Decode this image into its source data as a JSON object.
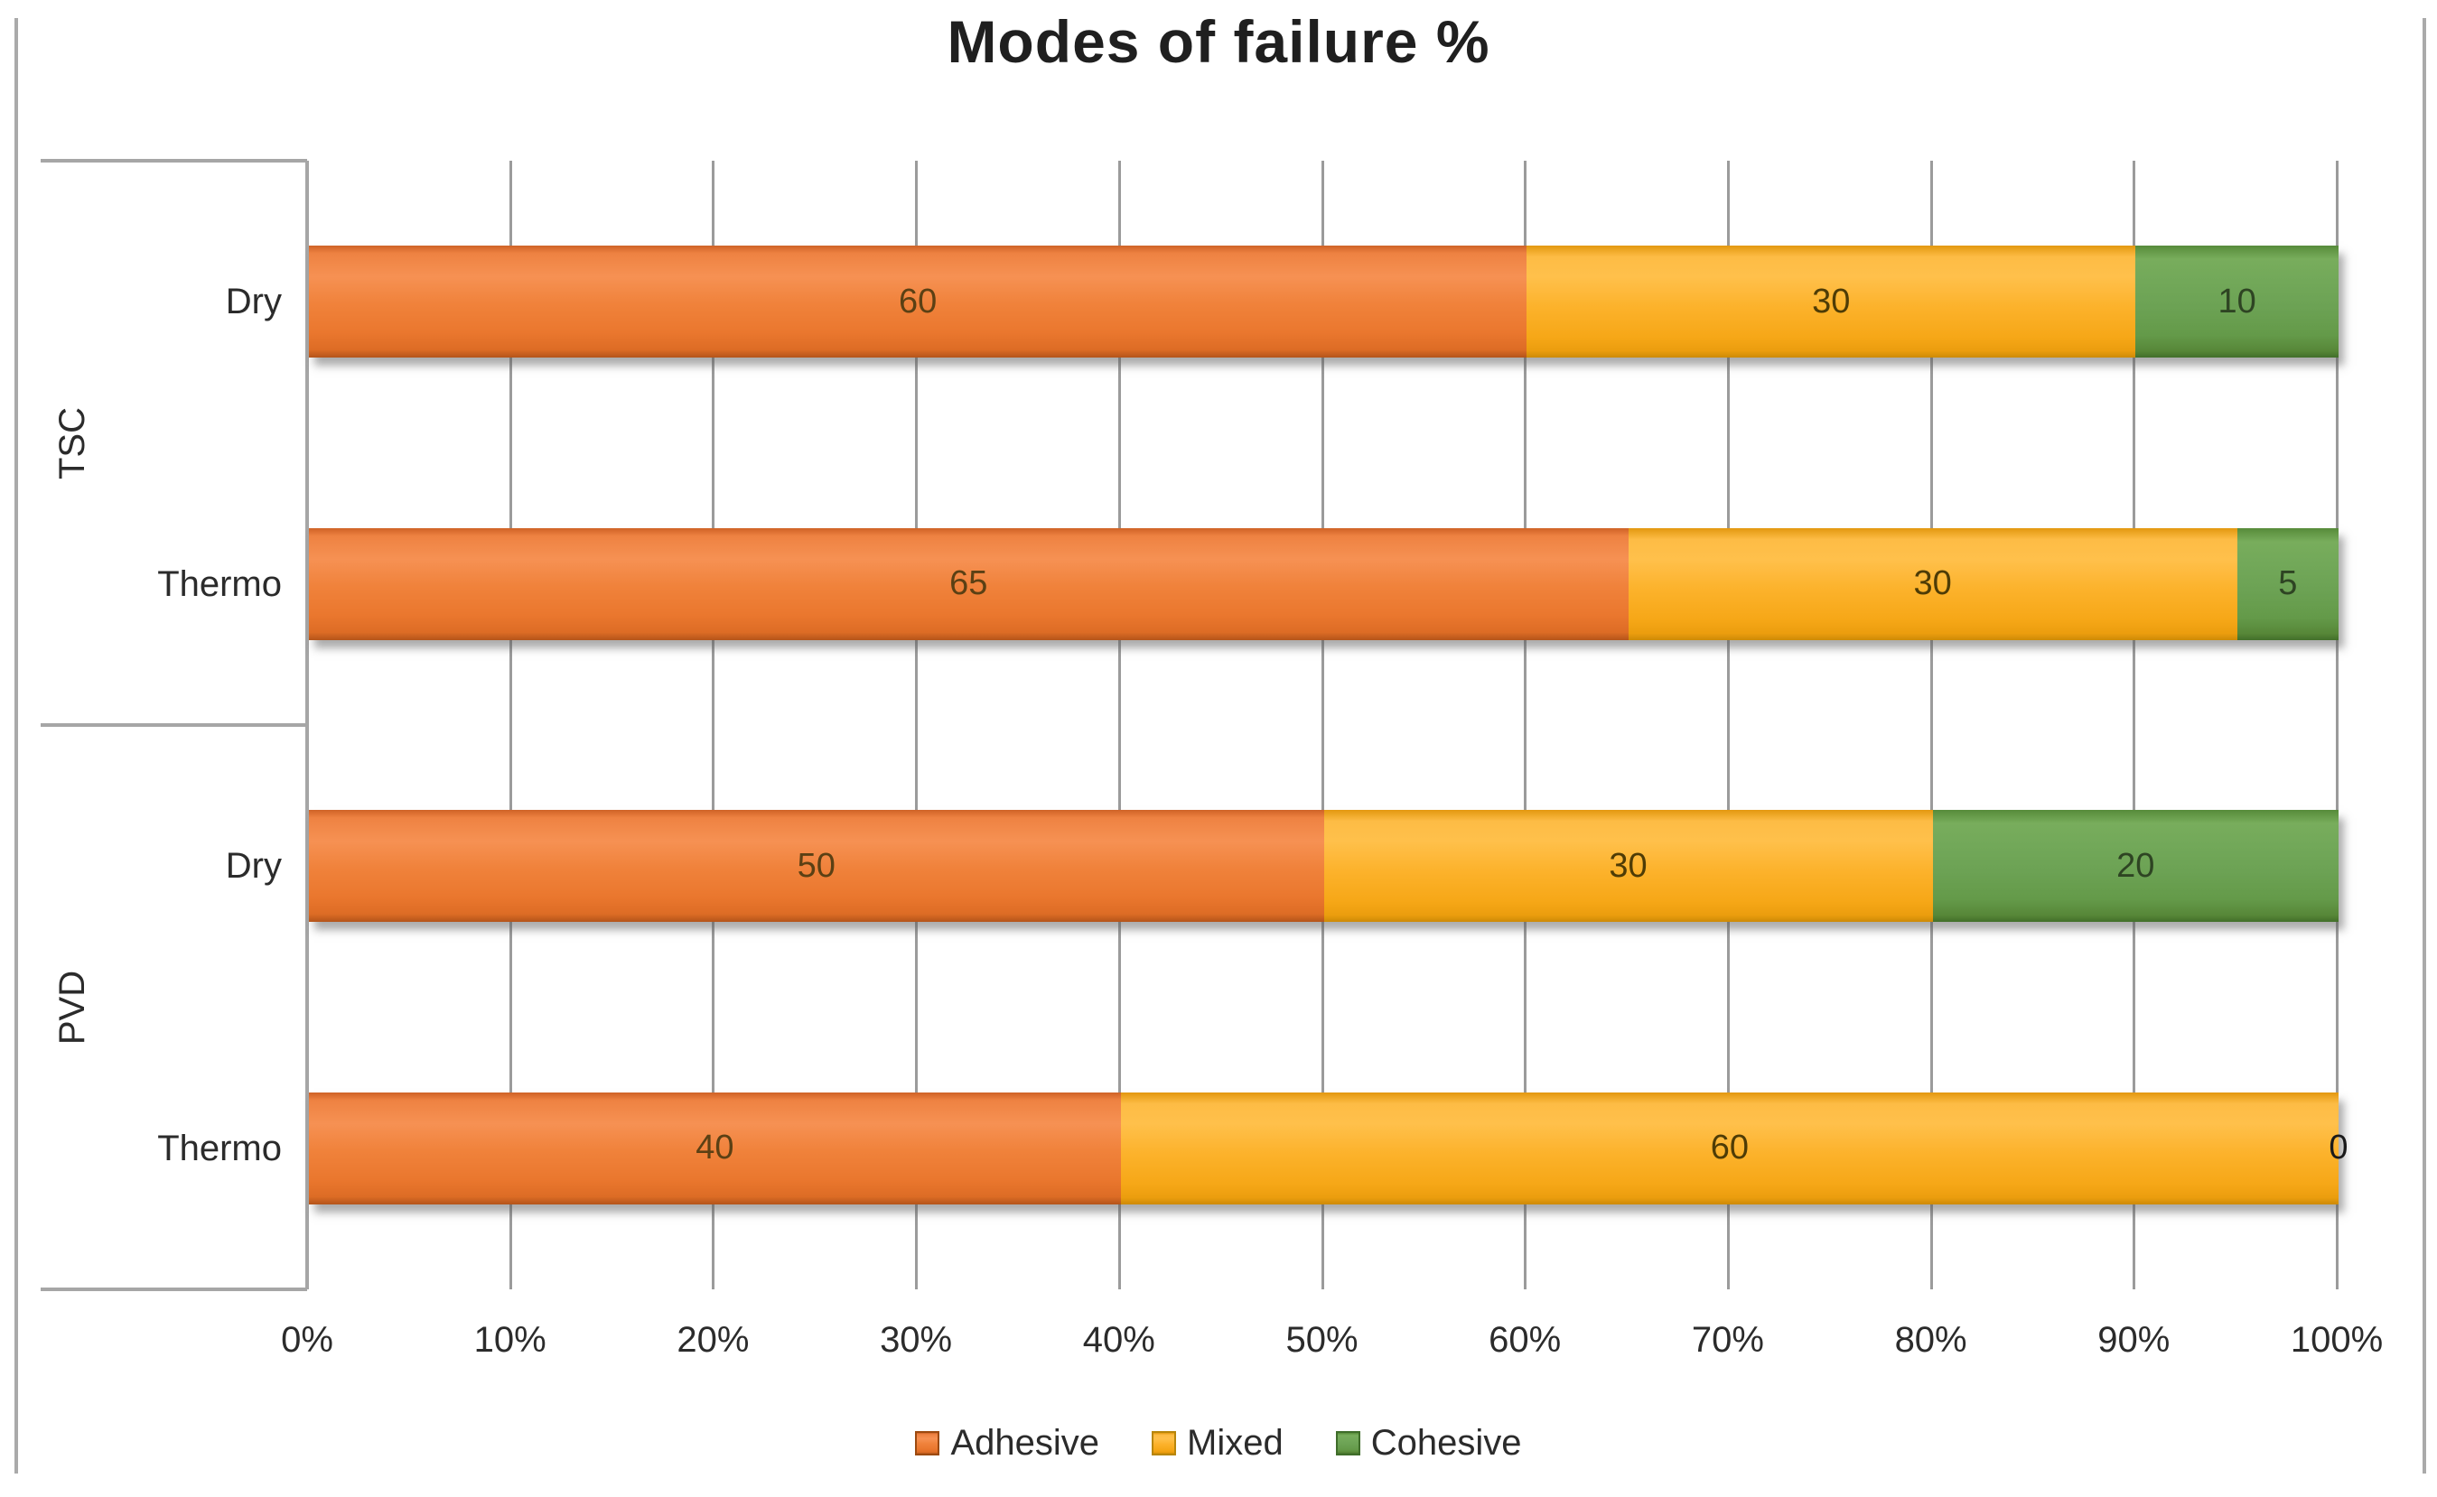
{
  "title": "Modes of failure %",
  "legend": {
    "position": "bottom",
    "items": [
      "Adhesive",
      "Mixed",
      "Cohesive"
    ]
  },
  "axis": {
    "tick_labels": [
      "0%",
      "10%",
      "20%",
      "30%",
      "40%",
      "50%",
      "60%",
      "70%",
      "80%",
      "90%",
      "100%"
    ],
    "min": 0,
    "max": 100
  },
  "style": {
    "grid_color": "#9b9b9b",
    "axis_color": "#a6a6a6",
    "frame_color": "#aaaaaa",
    "zero_label_color": "#1a1a1a"
  },
  "chart_data": {
    "type": "bar",
    "orientation": "horizontal",
    "stacked": true,
    "title": "Modes of failure %",
    "grid": true,
    "legend_position": "bottom",
    "data_labels": true,
    "xlim": [
      0,
      100
    ],
    "tick_labels": [
      "0%",
      "10%",
      "20%",
      "30%",
      "40%",
      "50%",
      "60%",
      "70%",
      "80%",
      "90%",
      "100%"
    ],
    "category_groups": [
      {
        "label": "TSC",
        "categories": [
          "Dry",
          "Thermo"
        ]
      },
      {
        "label": "PVD",
        "categories": [
          "Dry",
          "Thermo"
        ]
      }
    ],
    "rows": [
      {
        "group": "TSC",
        "category": "Dry"
      },
      {
        "group": "TSC",
        "category": "Thermo"
      },
      {
        "group": "PVD",
        "category": "Dry"
      },
      {
        "group": "PVD",
        "category": "Thermo"
      }
    ],
    "series": [
      {
        "name": "Adhesive",
        "color": "#ED7D31",
        "label_color": "#5b4014",
        "values": [
          60,
          65,
          50,
          40
        ]
      },
      {
        "name": "Mixed",
        "color": "#FDB22A",
        "label_color": "#4e3c06",
        "values": [
          30,
          30,
          30,
          60
        ]
      },
      {
        "name": "Cohesive",
        "color": "#6DA455",
        "label_color": "#2e4423",
        "values": [
          10,
          5,
          20,
          0
        ]
      }
    ]
  }
}
